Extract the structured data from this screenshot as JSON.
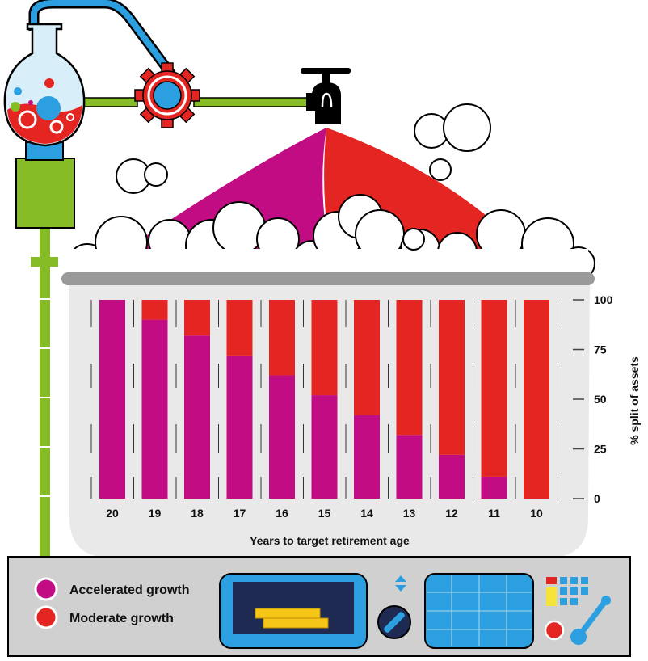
{
  "colors": {
    "accelerated": "#c20c83",
    "moderate": "#e52521",
    "green": "#86bc25",
    "blue": "#2b9fe0",
    "panel": "#d0d0d0",
    "tank": "#e9e9e9",
    "navy": "#1e2a52",
    "gold": "#f5c518"
  },
  "icons": [
    "flask-icon",
    "gear-icon",
    "faucet-icon",
    "bubble-icon",
    "dial-icon",
    "lever-icon",
    "keypad-icon",
    "coins-icon"
  ],
  "chart_data": {
    "type": "bar",
    "stacked": true,
    "categories": [
      "20",
      "19",
      "18",
      "17",
      "16",
      "15",
      "14",
      "13",
      "12",
      "11",
      "10"
    ],
    "series": [
      {
        "name": "Accelerated growth",
        "values": [
          100,
          90,
          82,
          72,
          62,
          52,
          42,
          32,
          22,
          11,
          0
        ]
      },
      {
        "name": "Moderate growth",
        "values": [
          0,
          10,
          18,
          28,
          38,
          48,
          58,
          68,
          78,
          89,
          100
        ]
      }
    ],
    "yticks": [
      "100",
      "75",
      "50",
      "25",
      "0"
    ],
    "ylim": [
      0,
      100
    ],
    "xlabel": "Years to target retirement age",
    "ylabel": "% split of assets",
    "legend_position": "bottom-left"
  },
  "legend": {
    "accelerated_label": "Accelerated growth",
    "moderate_label": "Moderate growth"
  }
}
